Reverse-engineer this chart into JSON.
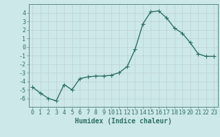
{
  "x": [
    0,
    1,
    2,
    3,
    4,
    5,
    6,
    7,
    8,
    9,
    10,
    11,
    12,
    13,
    14,
    15,
    16,
    17,
    18,
    19,
    20,
    21,
    22,
    23
  ],
  "y": [
    -4.7,
    -5.4,
    -6.0,
    -6.3,
    -4.4,
    -5.0,
    -3.7,
    -3.5,
    -3.4,
    -3.4,
    -3.3,
    -3.0,
    -2.3,
    -0.3,
    2.7,
    4.1,
    4.2,
    3.4,
    2.2,
    1.6,
    0.5,
    -0.8,
    -1.1,
    -1.1
  ],
  "line_color": "#2e6e62",
  "marker": "+",
  "markersize": 4,
  "linewidth": 1.0,
  "xlabel": "Humidex (Indice chaleur)",
  "ylim": [
    -7,
    5
  ],
  "xlim": [
    -0.5,
    23.5
  ],
  "yticks": [
    -6,
    -5,
    -4,
    -3,
    -2,
    -1,
    0,
    1,
    2,
    3,
    4
  ],
  "xticks": [
    0,
    1,
    2,
    3,
    4,
    5,
    6,
    7,
    8,
    9,
    10,
    11,
    12,
    13,
    14,
    15,
    16,
    17,
    18,
    19,
    20,
    21,
    22,
    23
  ],
  "grid_color": "#c0d4d4",
  "bg_color": "#cce8e8",
  "xlabel_fontsize": 7,
  "tick_fontsize": 6,
  "tick_color": "#2e6e62",
  "spine_color": "#5a8a80"
}
